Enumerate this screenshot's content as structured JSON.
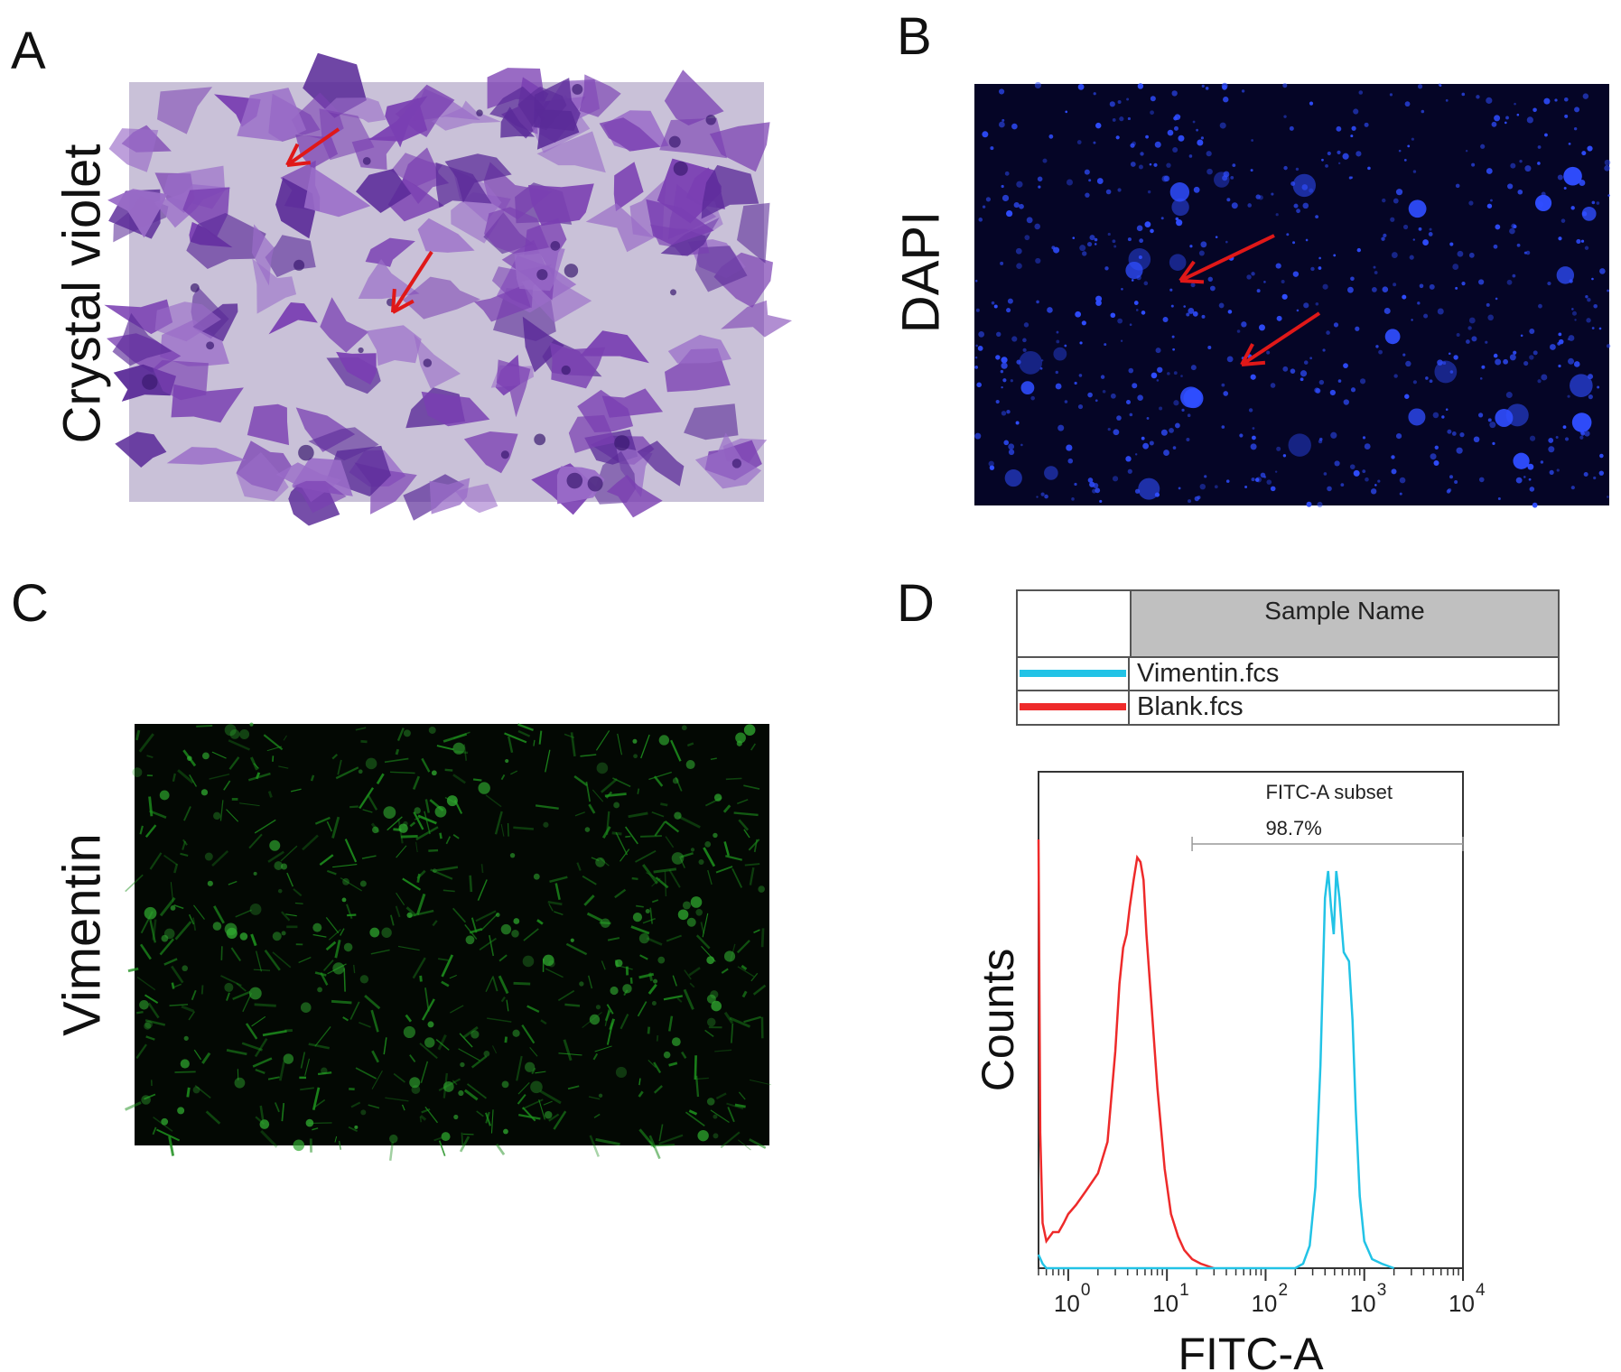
{
  "figure": {
    "panel_a": {
      "letter": "A",
      "label": "Crystal violet"
    },
    "panel_b": {
      "letter": "B",
      "label": "DAPI"
    },
    "panel_c": {
      "letter": "C",
      "label": "Vimentin"
    },
    "panel_d": {
      "letter": "D"
    }
  },
  "legend": {
    "header": "Sample Name",
    "rows": [
      {
        "name": "Vimentin.fcs",
        "color": "#22c3e6"
      },
      {
        "name": "Blank.fcs",
        "color": "#ee2a2a"
      }
    ]
  },
  "colors": {
    "crystal_violet_bg": "#c9c1d8",
    "crystal_violet_cell": "#7a3fb2",
    "dapi_bg": "#050526",
    "dapi_nuclei": "#2f4dff",
    "vimentin_bg": "#030803",
    "vimentin_cell": "#1d8f1d",
    "arrow": "#e01818"
  },
  "chart_data": {
    "type": "line",
    "xlabel": "FITC-A",
    "ylabel": "Counts",
    "x_scale": "log",
    "xlim": [
      0.5,
      10000
    ],
    "x_ticks": [
      {
        "value": 1,
        "label": "10",
        "exp": "0"
      },
      {
        "value": 10,
        "label": "10",
        "exp": "1"
      },
      {
        "value": 100,
        "label": "10",
        "exp": "2"
      },
      {
        "value": 1000,
        "label": "10",
        "exp": "3"
      },
      {
        "value": 10000,
        "label": "10",
        "exp": "4"
      }
    ],
    "ylim": [
      0,
      100
    ],
    "gate": {
      "label": "FITC-A subset",
      "percent": "98.7%",
      "x_start": 18,
      "x_end": 10000
    },
    "series": [
      {
        "name": "Blank.fcs",
        "color": "#ee2a2a",
        "x": [
          0.5,
          0.52,
          0.55,
          0.6,
          0.7,
          0.8,
          0.9,
          1.0,
          1.2,
          1.5,
          2.0,
          2.5,
          3.0,
          3.3,
          3.6,
          3.9,
          4.2,
          4.6,
          5.0,
          5.4,
          5.8,
          6.2,
          7.0,
          8.0,
          9.5,
          11,
          13,
          15,
          18,
          22,
          30
        ],
        "y": [
          95,
          30,
          10,
          6,
          8,
          8,
          10,
          12,
          14,
          17,
          21,
          28,
          48,
          63,
          71,
          74,
          80,
          86,
          91,
          90,
          86,
          74,
          58,
          40,
          22,
          12,
          7,
          4,
          2,
          1,
          0
        ]
      },
      {
        "name": "Vimentin.fcs",
        "color": "#22c3e6",
        "x": [
          0.5,
          0.55,
          0.6,
          200,
          240,
          280,
          320,
          360,
          400,
          430,
          460,
          490,
          520,
          560,
          620,
          700,
          760,
          820,
          900,
          1000,
          1200,
          1500,
          2000
        ],
        "y": [
          3,
          1,
          0,
          0,
          1,
          5,
          18,
          45,
          82,
          88,
          80,
          74,
          88,
          82,
          70,
          68,
          55,
          35,
          16,
          6,
          2,
          1,
          0
        ]
      }
    ]
  }
}
